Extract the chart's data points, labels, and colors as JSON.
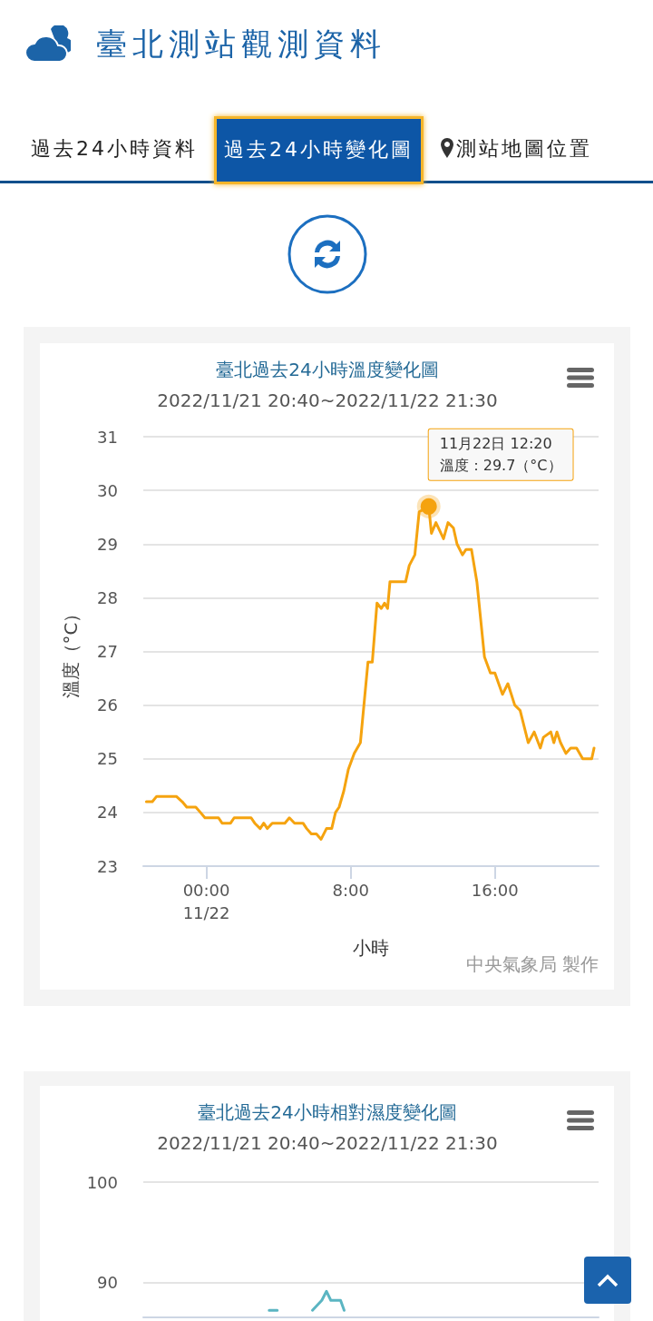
{
  "chart_data": [
    {
      "type": "line",
      "title": "臺北過去24小時溫度變化圖",
      "subtitle": "2022/11/21 20:40~2022/11/22 21:30",
      "xlabel": "小時",
      "ylabel": "溫度（°C）",
      "annotations": [
        "臺北測站觀測資料",
        "過去24小時資料",
        "過去24小時變化圖",
        "測站地圖位置",
        {
          "text": "11月22日 12:20\n溫度：29.7（°C）",
          "x": 12.33,
          "y": 29.7
        },
        "中央氣象局 製作"
      ],
      "x": [
        -3.33,
        -3.0,
        -2.76,
        -1.67,
        -1.34,
        -1.09,
        -0.59,
        -0.33,
        -0.08,
        0.67,
        0.87,
        1.34,
        1.54,
        2.48,
        2.68,
        2.98,
        3.18,
        3.38,
        3.65,
        4.35,
        4.6,
        4.89,
        5.36,
        5.56,
        5.82,
        6.1,
        6.36,
        6.66,
        6.95,
        7.16,
        7.36,
        7.62,
        7.87,
        8.2,
        8.54,
        8.96,
        9.2,
        9.46,
        9.7,
        9.88,
        10.05,
        10.18,
        11.05,
        11.25,
        11.56,
        11.8,
        12.33,
        12.48,
        12.73,
        13.15,
        13.4,
        13.7,
        13.9,
        14.2,
        14.4,
        14.7,
        15.0,
        15.42,
        15.75,
        16.0,
        16.42,
        16.72,
        17.1,
        17.4,
        17.85,
        18.18,
        18.52,
        18.69,
        19.1,
        19.27,
        19.44,
        19.64,
        19.94,
        20.2,
        20.53,
        20.87,
        21.37,
        21.5
      ],
      "series": [
        {
          "color": "#f5a30f",
          "values": [
            24.2,
            24.2,
            24.3,
            24.3,
            24.2,
            24.1,
            24.1,
            24.0,
            23.9,
            23.9,
            23.8,
            23.8,
            23.9,
            23.9,
            23.8,
            23.7,
            23.8,
            23.7,
            23.8,
            23.8,
            23.9,
            23.8,
            23.8,
            23.7,
            23.6,
            23.6,
            23.5,
            23.7,
            23.7,
            24.0,
            24.1,
            24.4,
            24.8,
            25.1,
            25.3,
            26.8,
            26.8,
            27.9,
            27.8,
            27.9,
            27.8,
            28.3,
            28.3,
            28.6,
            28.8,
            29.6,
            29.7,
            29.2,
            29.4,
            29.1,
            29.4,
            29.3,
            29.0,
            28.8,
            28.9,
            28.9,
            28.3,
            26.9,
            26.6,
            26.6,
            26.2,
            26.4,
            26.0,
            25.9,
            25.3,
            25.5,
            25.2,
            25.4,
            25.5,
            25.3,
            25.5,
            25.3,
            25.1,
            25.2,
            25.2,
            25.0,
            25.0,
            25.2
          ]
        }
      ],
      "xlim": [
        -3.5,
        21.75
      ],
      "xticks": [
        {
          "value": 0,
          "label": "00:00\n11/22"
        },
        {
          "value": 8,
          "label": "8:00"
        },
        {
          "value": 16,
          "label": "16:00"
        }
      ],
      "ylim": [
        23,
        31
      ],
      "yticks": [
        23,
        24,
        25,
        26,
        27,
        28,
        29,
        30,
        31
      ],
      "grid": "y",
      "line_style": "solid"
    },
    {
      "type": "line",
      "title": "臺北過去24小時相對濕度變化圖",
      "subtitle": "2022/11/21 20:40~2022/11/22 21:30",
      "x": [
        3.48,
        3.93,
        4.5,
        5.88,
        6.4,
        6.66,
        6.9,
        7.44,
        7.64
      ],
      "series": [
        {
          "color": "#5bb5c2",
          "values": [
            87.2,
            87.2,
            null,
            87.2,
            88.2,
            89.1,
            88.2,
            88.2,
            87.2
          ]
        }
      ],
      "xlim": [
        -3.5,
        21.75
      ],
      "ylim": [
        86.5,
        100
      ],
      "yticks": [
        90,
        100
      ],
      "grid": "y",
      "tick_labels": "y",
      "line_style": "solid"
    }
  ]
}
